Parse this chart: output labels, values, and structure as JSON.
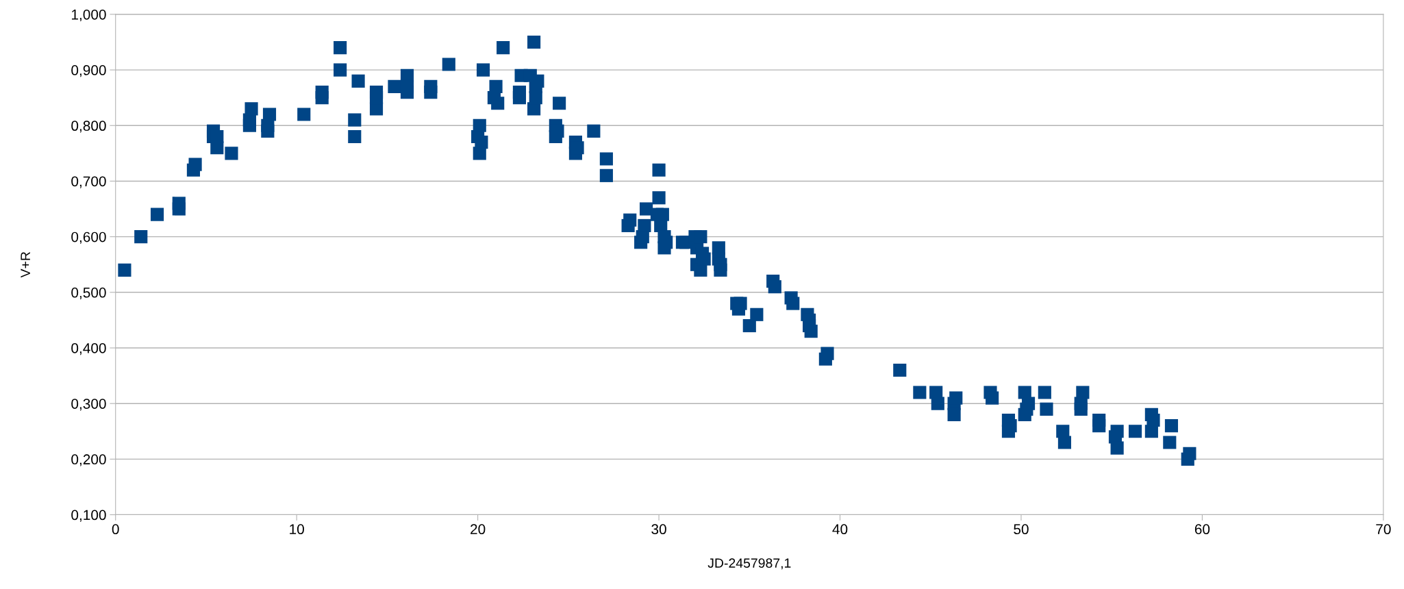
{
  "chart_data": {
    "type": "scatter",
    "xlabel": "JD-2457987,1",
    "ylabel": "V+R",
    "xlim": [
      0,
      70
    ],
    "xticks": [
      0,
      10,
      20,
      30,
      40,
      50,
      60,
      70
    ],
    "ylim": [
      0.1,
      1.0
    ],
    "yticks": [
      {
        "value": 0.1,
        "label": "0,100"
      },
      {
        "value": 0.2,
        "label": "0,200"
      },
      {
        "value": 0.3,
        "label": "0,300"
      },
      {
        "value": 0.4,
        "label": "0,400"
      },
      {
        "value": 0.5,
        "label": "0,500"
      },
      {
        "value": 0.6,
        "label": "0,600"
      },
      {
        "value": 0.7,
        "label": "0,700"
      },
      {
        "value": 0.8,
        "label": "0,800"
      },
      {
        "value": 0.9,
        "label": "0,900"
      },
      {
        "value": 1.0,
        "label": "1,000"
      }
    ],
    "grid": "y",
    "marker": "square",
    "series": [
      {
        "color": "#004586",
        "x": [
          0.5,
          1.4,
          2.3,
          3.5,
          3.5,
          4.3,
          4.4,
          5.4,
          5.4,
          5.6,
          5.6,
          6.4,
          7.4,
          7.4,
          7.5,
          8.4,
          8.4,
          8.5,
          10.4,
          11.4,
          11.4,
          12.4,
          12.4,
          13.2,
          13.2,
          13.4,
          14.4,
          14.4,
          14.4,
          15.4,
          16.1,
          16.1,
          16.1,
          17.4,
          17.4,
          18.4,
          20.0,
          20.1,
          20.1,
          20.2,
          20.3,
          20.9,
          21.0,
          21.1,
          21.4,
          22.3,
          22.3,
          22.4,
          22.9,
          23.1,
          23.1,
          23.2,
          23.2,
          23.3,
          24.3,
          24.3,
          24.4,
          24.5,
          25.4,
          25.4,
          25.5,
          26.4,
          27.1,
          27.1,
          28.3,
          28.4,
          29.0,
          29.1,
          29.2,
          29.3,
          29.9,
          30.0,
          30.0,
          30.1,
          30.2,
          30.3,
          30.3,
          30.4,
          31.3,
          31.5,
          32.0,
          32.1,
          32.1,
          32.3,
          32.3,
          32.4,
          32.5,
          33.3,
          33.3,
          33.4,
          33.4,
          34.3,
          34.4,
          34.5,
          35.0,
          35.4,
          36.3,
          36.4,
          37.3,
          37.4,
          38.2,
          38.3,
          38.3,
          38.4,
          39.2,
          39.3,
          43.3,
          44.4,
          45.3,
          45.4,
          46.3,
          46.3,
          46.4,
          48.3,
          48.4,
          49.3,
          49.3,
          49.4,
          50.2,
          50.2,
          50.3,
          50.4,
          51.3,
          51.4,
          52.3,
          52.4,
          53.3,
          53.3,
          53.4,
          54.3,
          54.3,
          55.2,
          55.3,
          55.3,
          56.3,
          57.2,
          57.2,
          57.3,
          58.2,
          58.3,
          59.2,
          59.3
        ],
        "values": [
          0.54,
          0.6,
          0.64,
          0.65,
          0.66,
          0.72,
          0.73,
          0.79,
          0.78,
          0.76,
          0.78,
          0.75,
          0.8,
          0.81,
          0.83,
          0.79,
          0.8,
          0.82,
          0.82,
          0.85,
          0.86,
          0.94,
          0.9,
          0.81,
          0.78,
          0.88,
          0.83,
          0.85,
          0.86,
          0.87,
          0.89,
          0.86,
          0.87,
          0.86,
          0.87,
          0.91,
          0.78,
          0.8,
          0.75,
          0.77,
          0.9,
          0.85,
          0.87,
          0.84,
          0.94,
          0.85,
          0.86,
          0.89,
          0.89,
          0.95,
          0.83,
          0.85,
          0.87,
          0.88,
          0.78,
          0.8,
          0.79,
          0.84,
          0.77,
          0.75,
          0.76,
          0.79,
          0.74,
          0.71,
          0.62,
          0.63,
          0.59,
          0.6,
          0.62,
          0.65,
          0.64,
          0.72,
          0.67,
          0.62,
          0.64,
          0.6,
          0.58,
          0.59,
          0.59,
          0.59,
          0.6,
          0.58,
          0.55,
          0.54,
          0.6,
          0.57,
          0.56,
          0.58,
          0.56,
          0.55,
          0.54,
          0.48,
          0.47,
          0.48,
          0.44,
          0.46,
          0.52,
          0.51,
          0.49,
          0.48,
          0.46,
          0.44,
          0.45,
          0.43,
          0.38,
          0.39,
          0.36,
          0.32,
          0.32,
          0.3,
          0.3,
          0.28,
          0.31,
          0.32,
          0.31,
          0.27,
          0.25,
          0.26,
          0.32,
          0.28,
          0.29,
          0.3,
          0.32,
          0.29,
          0.25,
          0.23,
          0.3,
          0.29,
          0.32,
          0.27,
          0.26,
          0.24,
          0.25,
          0.22,
          0.25,
          0.28,
          0.25,
          0.27,
          0.23,
          0.26,
          0.2,
          0.21
        ]
      }
    ]
  }
}
